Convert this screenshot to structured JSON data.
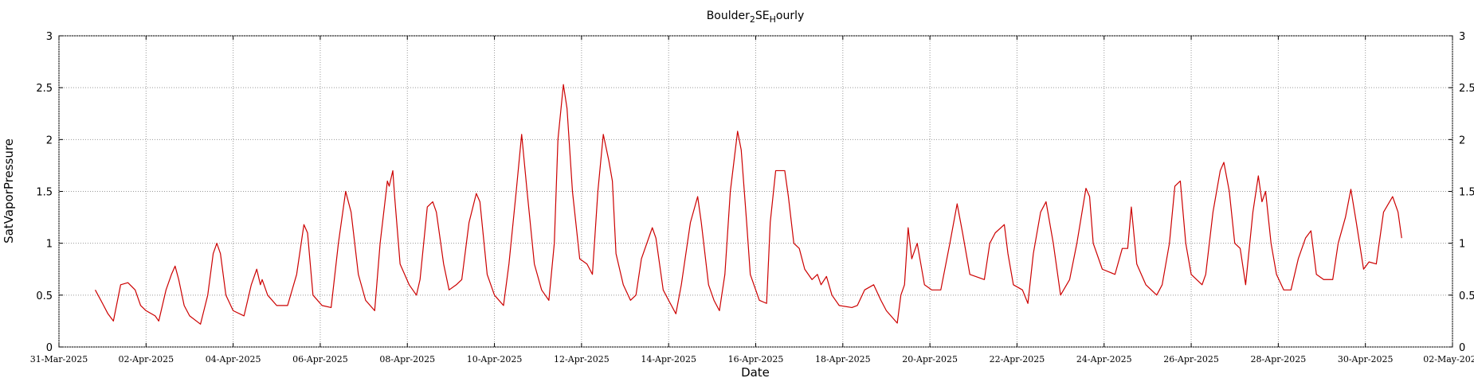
{
  "chart_data": {
    "type": "line",
    "title": [
      "Boulder",
      "2",
      "SE",
      "H",
      "ourly"
    ],
    "xlabel": "Date",
    "ylabel": "SatVaporPressure",
    "grid": true,
    "xlim": [
      "2025-03-31T00:00",
      "2025-05-02T00:00"
    ],
    "xticks": [
      {
        "value": "2025-03-31T00:00",
        "label": "31-Mar-2025"
      },
      {
        "value": "2025-04-02T00:00",
        "label": "02-Apr-2025"
      },
      {
        "value": "2025-04-04T00:00",
        "label": "04-Apr-2025"
      },
      {
        "value": "2025-04-06T00:00",
        "label": "06-Apr-2025"
      },
      {
        "value": "2025-04-08T00:00",
        "label": "08-Apr-2025"
      },
      {
        "value": "2025-04-10T00:00",
        "label": "10-Apr-2025"
      },
      {
        "value": "2025-04-12T00:00",
        "label": "12-Apr-2025"
      },
      {
        "value": "2025-04-14T00:00",
        "label": "14-Apr-2025"
      },
      {
        "value": "2025-04-16T00:00",
        "label": "16-Apr-2025"
      },
      {
        "value": "2025-04-18T00:00",
        "label": "18-Apr-2025"
      },
      {
        "value": "2025-04-20T00:00",
        "label": "20-Apr-2025"
      },
      {
        "value": "2025-04-22T00:00",
        "label": "22-Apr-2025"
      },
      {
        "value": "2025-04-24T00:00",
        "label": "24-Apr-2025"
      },
      {
        "value": "2025-04-26T00:00",
        "label": "26-Apr-2025"
      },
      {
        "value": "2025-04-28T00:00",
        "label": "28-Apr-2025"
      },
      {
        "value": "2025-04-30T00:00",
        "label": "30-Apr-2025"
      },
      {
        "value": "2025-05-02T00:00",
        "label": "02-May-2025"
      }
    ],
    "ylim": [
      0,
      3
    ],
    "yticks": [
      0,
      0.5,
      1,
      1.5,
      2,
      2.5,
      3
    ],
    "x": [
      "2025-03-31T20:00",
      "2025-04-01T00:00",
      "2025-04-01T03:00",
      "2025-04-01T06:00",
      "2025-04-01T10:00",
      "2025-04-01T14:00",
      "2025-04-01T18:00",
      "2025-04-01T21:00",
      "2025-04-02T00:00",
      "2025-04-02T05:00",
      "2025-04-02T07:00",
      "2025-04-02T11:00",
      "2025-04-02T14:00",
      "2025-04-02T16:00",
      "2025-04-02T18:00",
      "2025-04-02T21:00",
      "2025-04-03T00:00",
      "2025-04-03T06:00",
      "2025-04-03T10:00",
      "2025-04-03T13:00",
      "2025-04-03T15:00",
      "2025-04-03T17:00",
      "2025-04-03T20:00",
      "2025-04-04T00:00",
      "2025-04-04T06:00",
      "2025-04-04T10:00",
      "2025-04-04T13:00",
      "2025-04-04T15:00",
      "2025-04-04T16:00",
      "2025-04-04T19:00",
      "2025-04-05T00:00",
      "2025-04-05T06:00",
      "2025-04-05T11:00",
      "2025-04-05T15:00",
      "2025-04-05T17:00",
      "2025-04-05T20:00",
      "2025-04-06T01:00",
      "2025-04-06T06:00",
      "2025-04-06T10:00",
      "2025-04-06T14:00",
      "2025-04-06T17:00",
      "2025-04-06T21:00",
      "2025-04-07T01:00",
      "2025-04-07T06:00",
      "2025-04-07T09:00",
      "2025-04-07T13:00",
      "2025-04-07T14:00",
      "2025-04-07T16:00",
      "2025-04-07T17:00",
      "2025-04-07T20:00",
      "2025-04-08T01:00",
      "2025-04-08T05:00",
      "2025-04-08T07:00",
      "2025-04-08T11:00",
      "2025-04-08T14:00",
      "2025-04-08T16:00",
      "2025-04-08T20:00",
      "2025-04-08T23:00",
      "2025-04-09T03:00",
      "2025-04-09T06:00",
      "2025-04-09T10:00",
      "2025-04-09T14:00",
      "2025-04-09T16:00",
      "2025-04-09T20:00",
      "2025-04-10T00:00",
      "2025-04-10T05:00",
      "2025-04-10T08:00",
      "2025-04-10T12:00",
      "2025-04-10T15:00",
      "2025-04-10T18:00",
      "2025-04-10T22:00",
      "2025-04-11T02:00",
      "2025-04-11T06:00",
      "2025-04-11T09:00",
      "2025-04-11T11:00",
      "2025-04-11T14:00",
      "2025-04-11T16:00",
      "2025-04-11T19:00",
      "2025-04-11T23:00",
      "2025-04-12T03:00",
      "2025-04-12T06:00",
      "2025-04-12T09:00",
      "2025-04-12T12:00",
      "2025-04-12T15:00",
      "2025-04-12T17:00",
      "2025-04-12T19:00",
      "2025-04-12T23:00",
      "2025-04-13T03:00",
      "2025-04-13T06:00",
      "2025-04-13T09:00",
      "2025-04-13T15:00",
      "2025-04-13T17:00",
      "2025-04-13T21:00",
      "2025-04-14T00:00",
      "2025-04-14T04:00",
      "2025-04-14T07:00",
      "2025-04-14T12:00",
      "2025-04-14T16:00",
      "2025-04-14T18:00",
      "2025-04-14T22:00",
      "2025-04-15T01:00",
      "2025-04-15T04:00",
      "2025-04-15T07:00",
      "2025-04-15T10:00",
      "2025-04-15T14:00",
      "2025-04-15T16:00",
      "2025-04-15T19:00",
      "2025-04-15T21:00",
      "2025-04-16T02:00",
      "2025-04-16T06:00",
      "2025-04-16T08:00",
      "2025-04-16T11:00",
      "2025-04-16T16:00",
      "2025-04-16T18:00",
      "2025-04-16T21:00",
      "2025-04-17T00:00",
      "2025-04-17T03:00",
      "2025-04-17T07:00",
      "2025-04-17T10:00",
      "2025-04-17T12:00",
      "2025-04-17T15:00",
      "2025-04-17T18:00",
      "2025-04-17T22:00",
      "2025-04-18T05:00",
      "2025-04-18T08:00",
      "2025-04-18T12:00",
      "2025-04-18T17:00",
      "2025-04-18T21:00",
      "2025-04-19T00:00",
      "2025-04-19T06:00",
      "2025-04-19T08:00",
      "2025-04-19T10:00",
      "2025-04-19T12:00",
      "2025-04-19T14:00",
      "2025-04-19T17:00",
      "2025-04-19T21:00",
      "2025-04-20T01:00",
      "2025-04-20T06:00",
      "2025-04-20T11:00",
      "2025-04-20T15:00",
      "2025-04-20T18:00",
      "2025-04-20T22:00",
      "2025-04-21T06:00",
      "2025-04-21T09:00",
      "2025-04-21T12:00",
      "2025-04-21T17:00",
      "2025-04-21T19:00",
      "2025-04-21T22:00",
      "2025-04-22T03:00",
      "2025-04-22T06:00",
      "2025-04-22T09:00",
      "2025-04-22T13:00",
      "2025-04-22T16:00",
      "2025-04-22T20:00",
      "2025-04-23T00:00",
      "2025-04-23T05:00",
      "2025-04-23T09:00",
      "2025-04-23T14:00",
      "2025-04-23T16:00",
      "2025-04-23T18:00",
      "2025-04-23T23:00",
      "2025-04-24T06:00",
      "2025-04-24T10:00",
      "2025-04-24T13:00",
      "2025-04-24T15:00",
      "2025-04-24T18:00",
      "2025-04-24T23:00",
      "2025-04-25T05:00",
      "2025-04-25T08:00",
      "2025-04-25T12:00",
      "2025-04-25T15:00",
      "2025-04-25T18:00",
      "2025-04-25T21:00",
      "2025-04-26T00:00",
      "2025-04-26T06:00",
      "2025-04-26T08:00",
      "2025-04-26T12:00",
      "2025-04-26T16:00",
      "2025-04-26T18:00",
      "2025-04-26T21:00",
      "2025-04-27T00:00",
      "2025-04-27T03:00",
      "2025-04-27T06:00",
      "2025-04-27T10:00",
      "2025-04-27T13:00",
      "2025-04-27T15:00",
      "2025-04-27T17:00",
      "2025-04-27T20:00",
      "2025-04-27T23:00",
      "2025-04-28T03:00",
      "2025-04-28T07:00",
      "2025-04-28T11:00",
      "2025-04-28T15:00",
      "2025-04-28T18:00",
      "2025-04-28T21:00",
      "2025-04-29T01:00",
      "2025-04-29T06:00",
      "2025-04-29T09:00",
      "2025-04-29T13:00",
      "2025-04-29T16:00",
      "2025-04-29T19:00",
      "2025-04-29T23:00",
      "2025-04-30T02:00",
      "2025-04-30T06:00",
      "2025-04-30T10:00",
      "2025-04-30T15:00",
      "2025-04-30T18:00",
      "2025-04-30T20:00"
    ],
    "series": [
      {
        "color": "#cc0000",
        "values": [
          0.55,
          0.42,
          0.32,
          0.25,
          0.6,
          0.62,
          0.55,
          0.4,
          0.35,
          0.3,
          0.25,
          0.55,
          0.7,
          0.78,
          0.65,
          0.4,
          0.3,
          0.22,
          0.5,
          0.9,
          1.0,
          0.9,
          0.5,
          0.35,
          0.3,
          0.6,
          0.75,
          0.6,
          0.65,
          0.5,
          0.4,
          0.4,
          0.7,
          1.18,
          1.1,
          0.5,
          0.4,
          0.38,
          1.0,
          1.5,
          1.3,
          0.7,
          0.45,
          0.35,
          1.0,
          1.6,
          1.55,
          1.7,
          1.45,
          0.8,
          0.6,
          0.5,
          0.65,
          1.35,
          1.4,
          1.3,
          0.8,
          0.55,
          0.6,
          0.65,
          1.2,
          1.48,
          1.4,
          0.7,
          0.5,
          0.4,
          0.8,
          1.5,
          2.05,
          1.5,
          0.8,
          0.55,
          0.45,
          1.0,
          2.0,
          2.53,
          2.3,
          1.5,
          0.85,
          0.8,
          0.7,
          1.5,
          2.05,
          1.8,
          1.6,
          0.9,
          0.6,
          0.45,
          0.5,
          0.85,
          1.15,
          1.05,
          0.55,
          0.45,
          0.32,
          0.6,
          1.2,
          1.45,
          1.2,
          0.6,
          0.45,
          0.35,
          0.7,
          1.5,
          2.08,
          1.9,
          1.2,
          0.7,
          0.45,
          0.42,
          1.2,
          1.7,
          1.7,
          1.45,
          1.0,
          0.95,
          0.75,
          0.65,
          0.7,
          0.6,
          0.68,
          0.5,
          0.4,
          0.38,
          0.4,
          0.55,
          0.6,
          0.45,
          0.35,
          0.23,
          0.5,
          0.6,
          1.15,
          0.85,
          1.0,
          0.6,
          0.55,
          0.55,
          1.0,
          1.38,
          1.1,
          0.7,
          0.65,
          1.0,
          1.1,
          1.18,
          0.9,
          0.6,
          0.55,
          0.42,
          0.9,
          1.3,
          1.4,
          1.0,
          0.5,
          0.65,
          1.0,
          1.53,
          1.45,
          1.0,
          0.75,
          0.7,
          0.95,
          0.95,
          1.35,
          0.8,
          0.6,
          0.5,
          0.6,
          1.0,
          1.55,
          1.6,
          1.0,
          0.7,
          0.6,
          0.7,
          1.3,
          1.7,
          1.78,
          1.5,
          1.0,
          0.95,
          0.6,
          1.3,
          1.65,
          1.4,
          1.5,
          1.0,
          0.7,
          0.55,
          0.55,
          0.85,
          1.05,
          1.12,
          0.7,
          0.65,
          0.65,
          1.0,
          1.25,
          1.52,
          1.2,
          0.75,
          0.82,
          0.8,
          1.3,
          1.45,
          1.3,
          1.05
        ]
      }
    ]
  }
}
